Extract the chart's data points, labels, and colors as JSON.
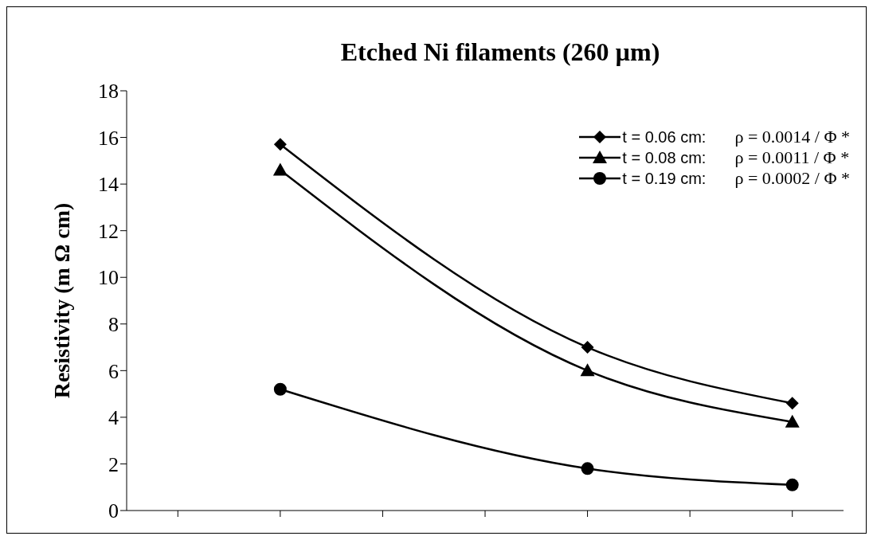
{
  "chart_data": {
    "type": "line",
    "title": "Etched Ni filaments (260 µm)",
    "ylabel": "Resistivity (m Ω cm)",
    "categories": [
      null,
      null,
      null,
      null,
      null,
      null,
      null
    ],
    "series": [
      {
        "name": "t = 0.06 cm:",
        "color": "#000000",
        "marker": "diamond",
        "values": [
          null,
          15.7,
          null,
          null,
          7.0,
          null,
          4.6
        ]
      },
      {
        "name": "t = 0.08 cm:",
        "color": "#000000",
        "marker": "triangle",
        "values": [
          null,
          14.6,
          null,
          null,
          6.0,
          null,
          3.8
        ]
      },
      {
        "name": "t = 0.19 cm:",
        "color": "#000000",
        "marker": "circle",
        "values": [
          null,
          5.2,
          null,
          null,
          1.8,
          null,
          1.1
        ]
      }
    ],
    "annotations": [
      "ρ = 0.0014 / Φ *",
      "ρ = 0.0011 / Φ *",
      "ρ = 0.0002 / Φ *"
    ],
    "ylim": [
      0,
      18
    ],
    "yticks": [
      0,
      2,
      4,
      6,
      8,
      10,
      12,
      14,
      16,
      18
    ],
    "grid": false,
    "legend": "top right",
    "line_style": "solid"
  }
}
